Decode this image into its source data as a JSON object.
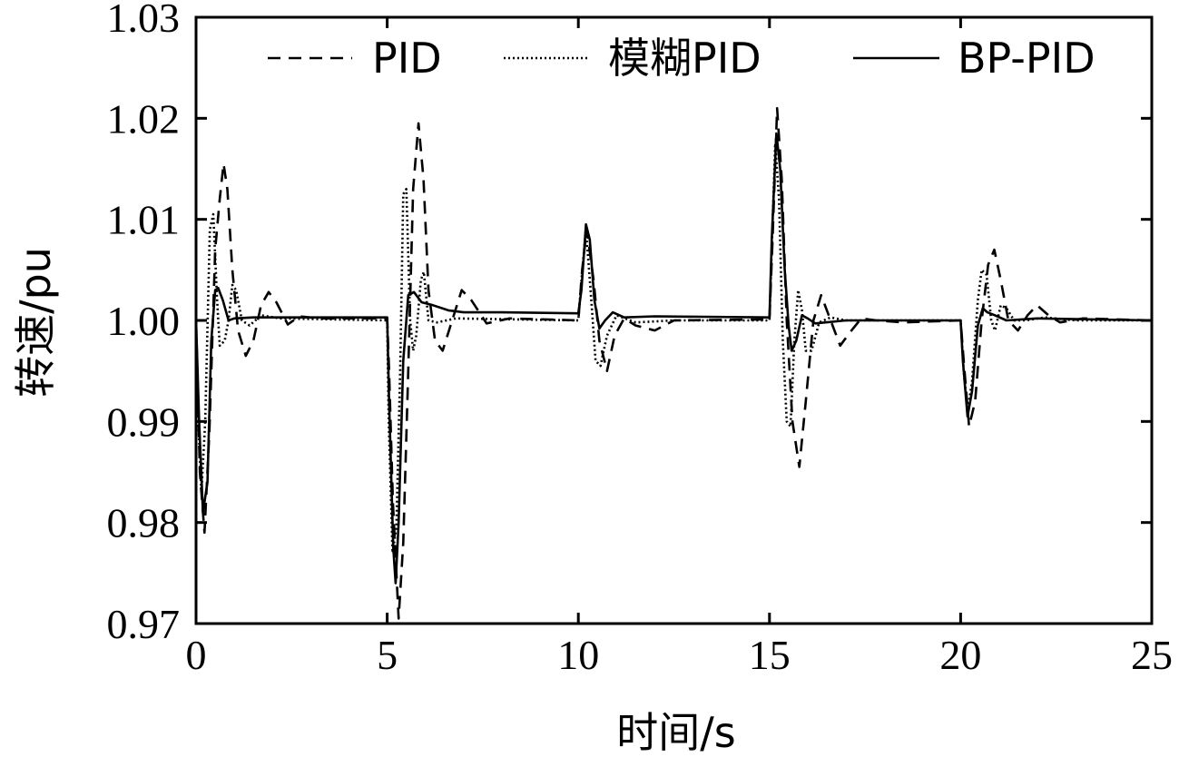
{
  "chart_data": {
    "type": "line",
    "xlabel": "时间/s",
    "ylabel": "转速/pu",
    "xlim": [
      0,
      25
    ],
    "ylim": [
      0.97,
      1.03
    ],
    "xticks": [
      0,
      5,
      10,
      15,
      20,
      25
    ],
    "xtick_labels": [
      "0",
      "5",
      "10",
      "15",
      "20",
      "25"
    ],
    "yticks": [
      0.97,
      0.98,
      0.99,
      1.0,
      1.01,
      1.02,
      1.03
    ],
    "ytick_labels": [
      "0.97",
      "0.98",
      "0.99",
      "1.00",
      "1.01",
      "1.02",
      "1.03"
    ],
    "grid": false,
    "legend_position": "top",
    "series": [
      {
        "name": "PID",
        "style": "dashed",
        "color": "#000000",
        "points": [
          [
            0,
            1.0
          ],
          [
            0.1,
            0.985
          ],
          [
            0.22,
            0.979
          ],
          [
            0.35,
            0.989
          ],
          [
            0.5,
            1.007
          ],
          [
            0.62,
            1.012
          ],
          [
            0.72,
            1.0155
          ],
          [
            0.82,
            1.013
          ],
          [
            0.95,
            1.005
          ],
          [
            1.1,
            0.999
          ],
          [
            1.3,
            0.9965
          ],
          [
            1.5,
            0.998
          ],
          [
            1.7,
            1.0015
          ],
          [
            1.9,
            1.0028
          ],
          [
            2.1,
            1.0018
          ],
          [
            2.4,
            0.9996
          ],
          [
            2.7,
            1.0004
          ],
          [
            3.2,
            1.0002
          ],
          [
            5.0,
            1.0002
          ],
          [
            5.05,
            0.995
          ],
          [
            5.15,
            0.982
          ],
          [
            5.3,
            0.9705
          ],
          [
            5.42,
            0.978
          ],
          [
            5.55,
            0.995
          ],
          [
            5.68,
            1.013
          ],
          [
            5.82,
            1.0195
          ],
          [
            5.95,
            1.014
          ],
          [
            6.08,
            1.003
          ],
          [
            6.25,
            0.998
          ],
          [
            6.45,
            0.997
          ],
          [
            6.7,
            1.0
          ],
          [
            6.95,
            1.003
          ],
          [
            7.2,
            1.002
          ],
          [
            7.6,
            0.9997
          ],
          [
            8.2,
            1.0002
          ],
          [
            10.0,
            1.0
          ],
          [
            10.1,
            1.005
          ],
          [
            10.22,
            1.009
          ],
          [
            10.4,
            1.004
          ],
          [
            10.55,
            0.998
          ],
          [
            10.75,
            0.995
          ],
          [
            10.95,
            0.9985
          ],
          [
            11.2,
            1.0002
          ],
          [
            11.5,
            0.9995
          ],
          [
            12.0,
            0.999
          ],
          [
            12.5,
            1.0
          ],
          [
            15.0,
            1.0001
          ],
          [
            15.08,
            1.008
          ],
          [
            15.2,
            1.021
          ],
          [
            15.32,
            1.014
          ],
          [
            15.45,
            1.0
          ],
          [
            15.6,
            0.99
          ],
          [
            15.78,
            0.9855
          ],
          [
            15.95,
            0.992
          ],
          [
            16.15,
            1.0
          ],
          [
            16.35,
            1.0025
          ],
          [
            16.6,
            1.0
          ],
          [
            16.85,
            0.9975
          ],
          [
            17.1,
            0.9988
          ],
          [
            17.4,
            1.0002
          ],
          [
            17.8,
            1.0
          ],
          [
            18.5,
            0.9998
          ],
          [
            20.0,
            1.0
          ],
          [
            20.08,
            0.996
          ],
          [
            20.22,
            0.9895
          ],
          [
            20.38,
            0.992
          ],
          [
            20.55,
            1.0
          ],
          [
            20.72,
            1.0055
          ],
          [
            20.88,
            1.007
          ],
          [
            21.05,
            1.004
          ],
          [
            21.25,
            1.0
          ],
          [
            21.5,
            0.999
          ],
          [
            21.75,
            1.0005
          ],
          [
            22.0,
            1.0015
          ],
          [
            22.3,
            1.0005
          ],
          [
            22.6,
            0.9998
          ],
          [
            23.2,
            1.0002
          ],
          [
            25.0,
            1.0
          ]
        ]
      },
      {
        "name": "模糊PID",
        "style": "dotted",
        "color": "#000000",
        "points": [
          [
            0,
            1.0
          ],
          [
            0.06,
            0.99
          ],
          [
            0.14,
            0.983
          ],
          [
            0.24,
            0.99
          ],
          [
            0.36,
            1.009
          ],
          [
            0.45,
            1.0105
          ],
          [
            0.55,
            1.002
          ],
          [
            0.62,
            0.9975
          ],
          [
            0.75,
            0.998
          ],
          [
            0.85,
            1.0
          ],
          [
            0.95,
            1.0035
          ],
          [
            1.05,
            1.003
          ],
          [
            1.2,
            1.0
          ],
          [
            1.4,
            0.9995
          ],
          [
            1.7,
            1.0005
          ],
          [
            2.2,
            1.0002
          ],
          [
            5.0,
            1.0
          ],
          [
            5.04,
            0.99
          ],
          [
            5.14,
            0.977
          ],
          [
            5.24,
            0.9795
          ],
          [
            5.34,
            0.995
          ],
          [
            5.42,
            1.0125
          ],
          [
            5.5,
            1.013
          ],
          [
            5.6,
            1.0
          ],
          [
            5.68,
            0.997
          ],
          [
            5.76,
            0.9985
          ],
          [
            5.88,
            1.004
          ],
          [
            5.96,
            1.0048
          ],
          [
            6.08,
            1.0
          ],
          [
            6.3,
            0.9998
          ],
          [
            6.8,
            1.0002
          ],
          [
            10.0,
            1.0
          ],
          [
            10.08,
            1.004
          ],
          [
            10.2,
            1.009
          ],
          [
            10.32,
            1.003
          ],
          [
            10.45,
            0.996
          ],
          [
            10.58,
            0.9955
          ],
          [
            10.75,
            0.9985
          ],
          [
            11.0,
            1.0005
          ],
          [
            11.5,
            0.9998
          ],
          [
            12.5,
            1.0
          ],
          [
            15.0,
            1.0
          ],
          [
            15.05,
            1.006
          ],
          [
            15.15,
            1.0175
          ],
          [
            15.25,
            1.012
          ],
          [
            15.35,
            0.998
          ],
          [
            15.45,
            0.99
          ],
          [
            15.55,
            0.9895
          ],
          [
            15.65,
            0.998
          ],
          [
            15.75,
            1.003
          ],
          [
            15.85,
            1.001
          ],
          [
            15.95,
            0.997
          ],
          [
            16.1,
            0.997
          ],
          [
            16.3,
            0.9998
          ],
          [
            16.6,
            1.0003
          ],
          [
            17.0,
            1.0
          ],
          [
            20.0,
            1.0
          ],
          [
            20.08,
            0.995
          ],
          [
            20.18,
            0.991
          ],
          [
            20.3,
            0.994
          ],
          [
            20.45,
            1.002
          ],
          [
            20.55,
            1.005
          ],
          [
            20.68,
            1.0045
          ],
          [
            20.8,
            1.0
          ],
          [
            20.9,
            0.999
          ],
          [
            21.05,
            1.0015
          ],
          [
            21.2,
            1.0012
          ],
          [
            21.4,
            1.0
          ],
          [
            21.7,
            1.0
          ],
          [
            22.2,
            1.0003
          ],
          [
            23.0,
            1.0
          ],
          [
            25.0,
            1.0
          ]
        ]
      },
      {
        "name": "BP-PID",
        "style": "solid",
        "color": "#000000",
        "points": [
          [
            0,
            1.0
          ],
          [
            0.08,
            0.99
          ],
          [
            0.18,
            0.981
          ],
          [
            0.3,
            0.984
          ],
          [
            0.4,
            0.998
          ],
          [
            0.5,
            1.003
          ],
          [
            0.58,
            1.0032
          ],
          [
            0.7,
            1.002
          ],
          [
            0.85,
            1.0
          ],
          [
            1.0,
            1.0002
          ],
          [
            1.5,
            1.0003
          ],
          [
            3.0,
            1.0003
          ],
          [
            5.0,
            1.0003
          ],
          [
            5.05,
            0.992
          ],
          [
            5.16,
            0.9775
          ],
          [
            5.22,
            0.974
          ],
          [
            5.3,
            0.98
          ],
          [
            5.42,
            0.996
          ],
          [
            5.55,
            1.0025
          ],
          [
            5.7,
            1.0028
          ],
          [
            5.9,
            1.0018
          ],
          [
            6.2,
            1.0015
          ],
          [
            6.6,
            1.001
          ],
          [
            7.0,
            1.0008
          ],
          [
            8.0,
            1.0008
          ],
          [
            10.0,
            1.0007
          ],
          [
            10.08,
            1.003
          ],
          [
            10.2,
            1.0095
          ],
          [
            10.3,
            1.008
          ],
          [
            10.42,
            1.002
          ],
          [
            10.55,
            0.9992
          ],
          [
            10.7,
            1.0
          ],
          [
            10.9,
            1.0008
          ],
          [
            11.2,
            1.0003
          ],
          [
            12.0,
            1.0004
          ],
          [
            15.0,
            1.0003
          ],
          [
            15.06,
            1.008
          ],
          [
            15.18,
            1.0185
          ],
          [
            15.28,
            1.015
          ],
          [
            15.4,
            1.005
          ],
          [
            15.5,
            0.9995
          ],
          [
            15.58,
            0.997
          ],
          [
            15.7,
            0.998
          ],
          [
            15.85,
            1.0005
          ],
          [
            16.0,
            1.0002
          ],
          [
            16.2,
            0.9997
          ],
          [
            17.0,
            1.0
          ],
          [
            20.0,
            1.0
          ],
          [
            20.06,
            0.996
          ],
          [
            20.18,
            0.9905
          ],
          [
            20.3,
            0.993
          ],
          [
            20.45,
            0.9995
          ],
          [
            20.58,
            1.0012
          ],
          [
            20.7,
            1.0008
          ],
          [
            20.9,
            1.0005
          ],
          [
            21.2,
            1.0
          ],
          [
            22.0,
            1.0002
          ],
          [
            25.0,
            1.0
          ]
        ]
      }
    ]
  }
}
